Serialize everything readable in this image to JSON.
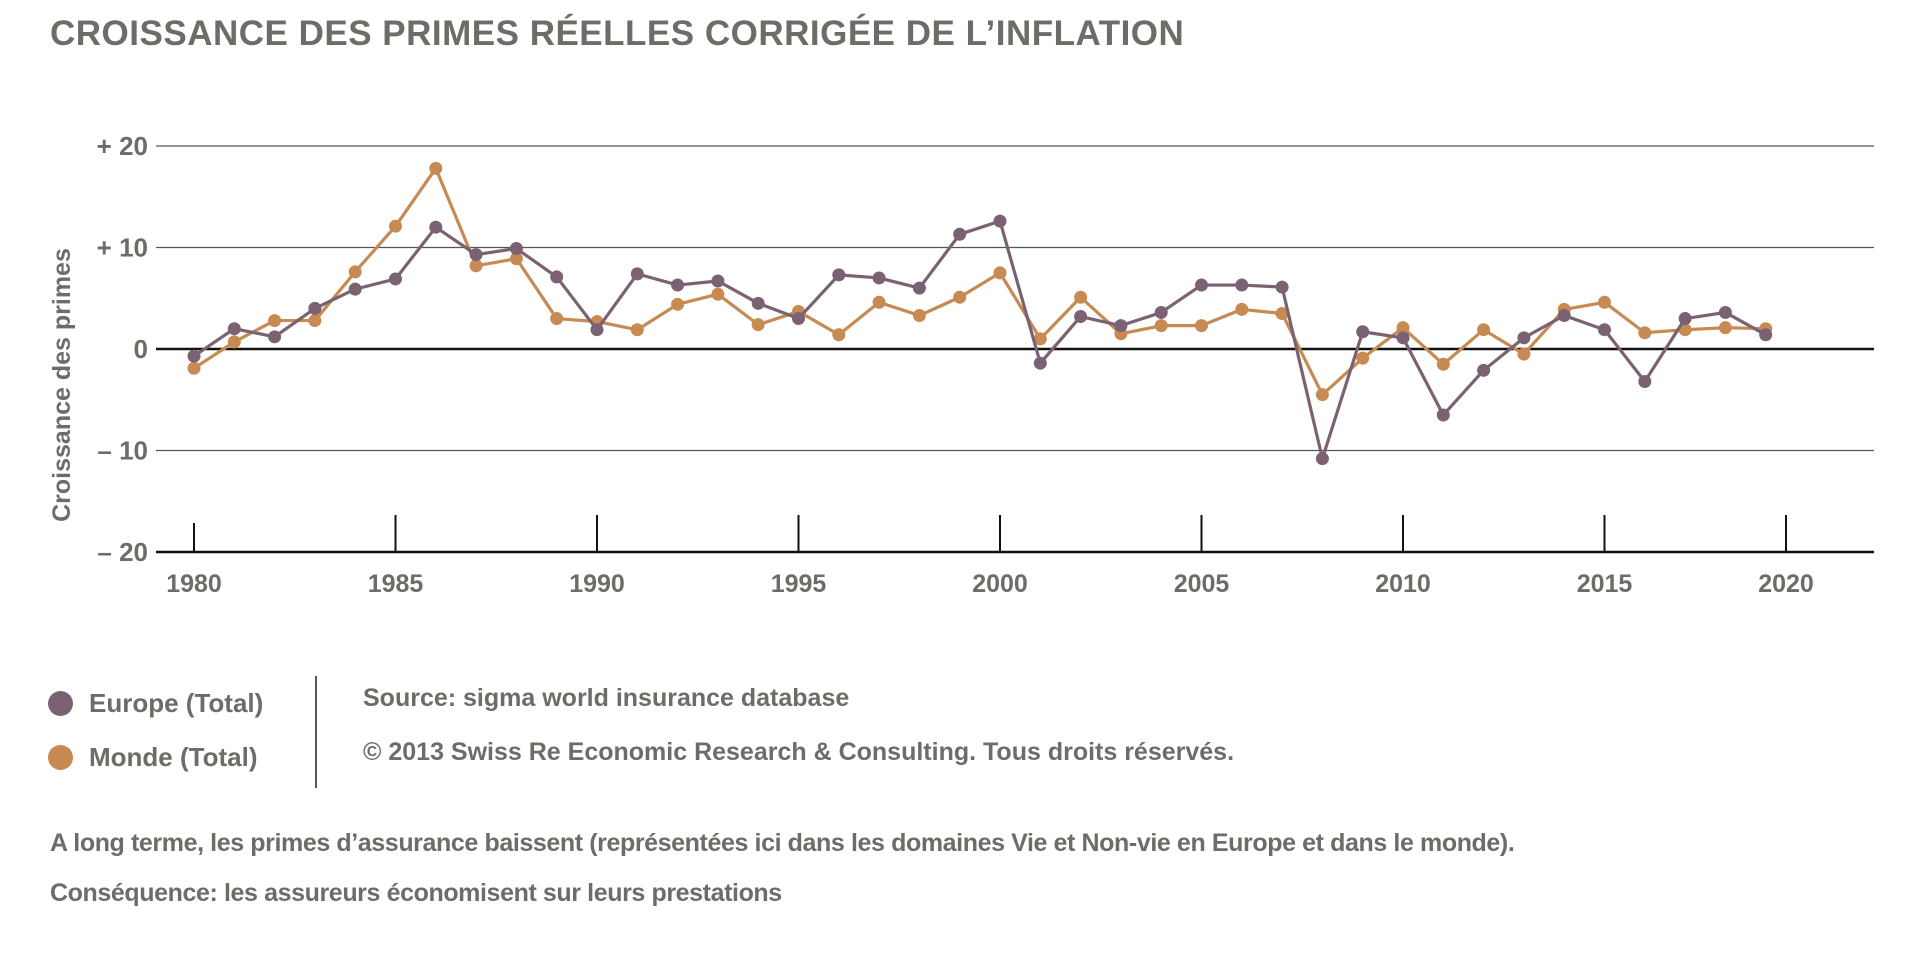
{
  "title": "CROISSANCE DES PRIMES RÉELLES CORRIGÉE DE L’INFLATION",
  "legend": [
    {
      "label": "Europe (Total)",
      "color": "#7a6272"
    },
    {
      "label": "Monde (Total)",
      "color": "#c68a52"
    }
  ],
  "source": {
    "line1": "Source: sigma world insurance database",
    "line2": "© 2013 Swiss Re Economic Research & Consulting. Tous droits réservés."
  },
  "caption": {
    "line1": "A long terme, les primes d’assurance baissent (représentées ici dans les domaines Vie et Non-vie en Europe et dans le monde).",
    "line2": "Conséquence: les assureurs économisent sur leurs prestations"
  },
  "chart_data": {
    "type": "line",
    "title": "CROISSANCE DES PRIMES RÉELLES CORRIGÉE DE L’INFLATION",
    "xlabel": "",
    "ylabel": "Croissance des primes",
    "xlim": [
      1980,
      2020
    ],
    "ylim": [
      -20,
      20
    ],
    "xticks": [
      1980,
      1985,
      1990,
      1995,
      2000,
      2005,
      2010,
      2015,
      2020
    ],
    "yticks": [
      {
        "value": 20,
        "label": "+ 20"
      },
      {
        "value": 10,
        "label": "+ 10"
      },
      {
        "value": 0,
        "label": "0"
      },
      {
        "value": -10,
        "label": "– 10"
      },
      {
        "value": -20,
        "label": "– 20"
      }
    ],
    "grid": true,
    "legend_position": "bottom-left",
    "x": [
      1980,
      1981,
      1982,
      1983,
      1984,
      1985,
      1986,
      1987,
      1988,
      1989,
      1990,
      1991,
      1992,
      1993,
      1994,
      1995,
      1996,
      1997,
      1998,
      1999,
      2000,
      2001,
      2002,
      2003,
      2004,
      2005,
      2006,
      2007,
      2008,
      2009,
      2010,
      2011,
      2012,
      2013,
      2014,
      2015,
      2016,
      2017,
      2018,
      2019
    ],
    "series": [
      {
        "name": "Europe (Total)",
        "color": "#7a6272",
        "values": [
          -0.7,
          2.0,
          1.2,
          4.0,
          5.9,
          6.9,
          12.0,
          9.3,
          9.9,
          7.1,
          1.9,
          7.4,
          6.3,
          6.7,
          4.5,
          3.0,
          7.3,
          7.0,
          6.0,
          11.3,
          12.6,
          -1.4,
          3.2,
          2.3,
          3.6,
          6.3,
          6.3,
          6.1,
          -10.8,
          1.7,
          1.1,
          -6.5,
          -2.1,
          1.1,
          3.3,
          1.9,
          -3.2,
          3.0,
          3.6,
          1.4
        ]
      },
      {
        "name": "Monde (Total)",
        "color": "#c68a52",
        "values": [
          -1.9,
          0.7,
          2.8,
          2.8,
          7.6,
          12.1,
          17.8,
          8.2,
          8.9,
          3.0,
          2.7,
          1.9,
          4.4,
          5.4,
          2.4,
          3.7,
          1.4,
          4.6,
          3.3,
          5.1,
          7.5,
          1.0,
          5.1,
          1.5,
          2.3,
          2.3,
          3.9,
          3.5,
          -4.5,
          -0.9,
          2.1,
          -1.5,
          1.9,
          -0.5,
          3.9,
          4.6,
          1.6,
          1.9,
          2.1,
          2.0
        ]
      }
    ]
  }
}
